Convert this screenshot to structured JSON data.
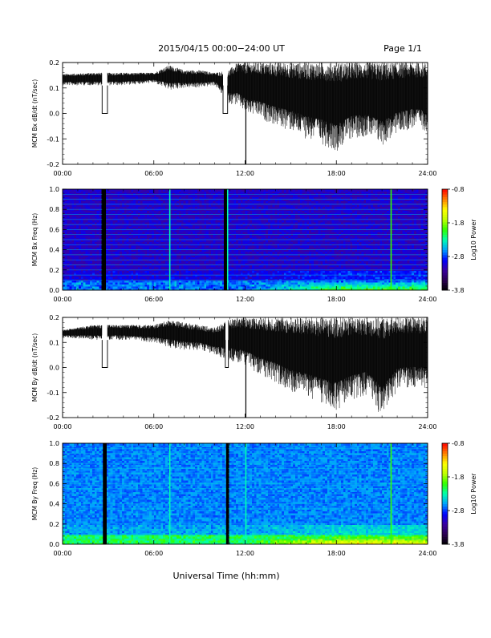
{
  "header": {
    "title": "2015/04/15   00:00−24:00 UT",
    "page_label": "Page 1/1"
  },
  "x_axis_title": "Universal Time (hh:mm)",
  "colors": {
    "trace": "#000000",
    "background": "#ffffff"
  },
  "chart_data": [
    {
      "type": "line",
      "ylabel": "MCM Bx dB/dt (nT/sec)",
      "xlim": [
        0,
        24
      ],
      "ylim": [
        -0.2,
        0.2
      ],
      "xticks": [
        "00:00",
        "06:00",
        "12:00",
        "18:00",
        "24:00"
      ],
      "yticks": [
        "-0.2",
        "-0.1",
        "0.0",
        "0.1",
        "0.2"
      ],
      "reference_line_y": 0.2,
      "data_gaps_hours": [
        [
          2.6,
          2.95
        ],
        [
          10.55,
          10.85
        ]
      ],
      "spikes_hours": [
        12.05
      ],
      "envelope": {
        "hours": [
          0,
          2,
          4,
          6,
          7,
          8,
          9,
          10,
          10.9,
          11.5,
          12,
          13,
          14,
          15,
          16,
          17,
          18,
          19,
          20,
          21,
          22,
          23,
          24
        ],
        "upper": [
          0.155,
          0.16,
          0.16,
          0.16,
          0.19,
          0.17,
          0.17,
          0.16,
          0.17,
          0.2,
          0.2,
          0.2,
          0.2,
          0.2,
          0.2,
          0.2,
          0.2,
          0.2,
          0.2,
          0.2,
          0.2,
          0.2,
          0.2
        ],
        "lower": [
          0.11,
          0.11,
          0.11,
          0.12,
          0.09,
          0.1,
          0.1,
          0.11,
          0.04,
          0.03,
          0.0,
          -0.02,
          -0.05,
          -0.07,
          -0.1,
          -0.12,
          -0.15,
          -0.1,
          -0.09,
          -0.13,
          -0.08,
          -0.06,
          -0.07
        ]
      }
    },
    {
      "type": "heatmap",
      "ylabel": "MCM Bx Freq (Hz)",
      "xlim": [
        0,
        24
      ],
      "ylim": [
        0.0,
        1.0
      ],
      "xticks": [
        "00:00",
        "06:00",
        "12:00",
        "18:00",
        "24:00"
      ],
      "yticks": [
        "0.0",
        "0.2",
        "0.4",
        "0.6",
        "0.8",
        "1.0"
      ],
      "colorbar": {
        "label": "Log10 Power",
        "range": [
          -3.8,
          -0.8
        ],
        "ticks": [
          "-0.8",
          "-1.8",
          "-2.8",
          "-3.8"
        ],
        "colormap": [
          "#000000",
          "#2a0050",
          "#3a00a0",
          "#0000ff",
          "#00a0ff",
          "#00ffb0",
          "#30ff00",
          "#c0ff00",
          "#ffff00",
          "#ff8000",
          "#ff0000"
        ]
      },
      "data_gaps_hours": [
        [
          2.6,
          2.85
        ],
        [
          10.6,
          10.8
        ]
      ],
      "bright_lines_hours": [
        7.05,
        10.85,
        21.6
      ],
      "harmonic_lines_hz": [
        0.05,
        0.1,
        0.15,
        0.2,
        0.25,
        0.3,
        0.35,
        0.4,
        0.45,
        0.5,
        0.55,
        0.6,
        0.65,
        0.7,
        0.75,
        0.8,
        0.85,
        0.9,
        0.95
      ]
    },
    {
      "type": "line",
      "ylabel": "MCM By dB/dt (nT/sec)",
      "xlim": [
        0,
        24
      ],
      "ylim": [
        -0.2,
        0.2
      ],
      "xticks": [
        "00:00",
        "06:00",
        "12:00",
        "18:00",
        "24:00"
      ],
      "yticks": [
        "-0.2",
        "-0.1",
        "0.0",
        "0.1",
        "0.2"
      ],
      "reference_line_y": 0.2,
      "data_gaps_hours": [
        [
          2.6,
          2.95
        ],
        [
          10.7,
          10.9
        ]
      ],
      "spikes_hours": [
        12.05
      ],
      "envelope": {
        "hours": [
          0,
          2,
          4,
          6,
          7,
          8,
          9,
          10,
          10.9,
          11.5,
          12,
          13,
          14,
          15,
          16,
          17,
          18,
          19,
          20,
          21,
          22,
          23,
          24
        ],
        "upper": [
          0.15,
          0.17,
          0.17,
          0.17,
          0.19,
          0.18,
          0.17,
          0.16,
          0.19,
          0.2,
          0.2,
          0.2,
          0.2,
          0.2,
          0.2,
          0.2,
          0.2,
          0.2,
          0.2,
          0.2,
          0.2,
          0.2,
          0.2
        ],
        "lower": [
          0.12,
          0.11,
          0.11,
          0.1,
          0.08,
          0.07,
          0.07,
          0.05,
          0.03,
          0.02,
          0.01,
          -0.03,
          -0.06,
          -0.1,
          -0.12,
          -0.15,
          -0.17,
          -0.13,
          -0.11,
          -0.2,
          -0.09,
          -0.08,
          -0.09
        ]
      }
    },
    {
      "type": "heatmap",
      "ylabel": "MCM By Freq (Hz)",
      "xlim": [
        0,
        24
      ],
      "ylim": [
        0.0,
        1.0
      ],
      "xticks": [
        "00:00",
        "06:00",
        "12:00",
        "18:00",
        "24:00"
      ],
      "yticks": [
        "0.0",
        "0.2",
        "0.4",
        "0.6",
        "0.8",
        "1.0"
      ],
      "colorbar": {
        "label": "Log10 Power",
        "range": [
          -3.8,
          -0.8
        ],
        "ticks": [
          "-0.8",
          "-1.8",
          "-2.8",
          "-3.8"
        ],
        "colormap": [
          "#000000",
          "#2a0050",
          "#3a00a0",
          "#0000ff",
          "#00a0ff",
          "#00ffb0",
          "#30ff00",
          "#c0ff00",
          "#ffff00",
          "#ff8000",
          "#ff0000"
        ]
      },
      "data_gaps_hours": [
        [
          2.65,
          2.9
        ],
        [
          10.75,
          10.9
        ]
      ],
      "bright_lines_hours": [
        7.05,
        12.05,
        21.6
      ],
      "harmonic_lines_hz": [
        0.05,
        0.1,
        0.15,
        0.2,
        0.25,
        0.3,
        0.35,
        0.4,
        0.45,
        0.5,
        0.55,
        0.6,
        0.65,
        0.7,
        0.75,
        0.8,
        0.85,
        0.9,
        0.95
      ]
    }
  ]
}
